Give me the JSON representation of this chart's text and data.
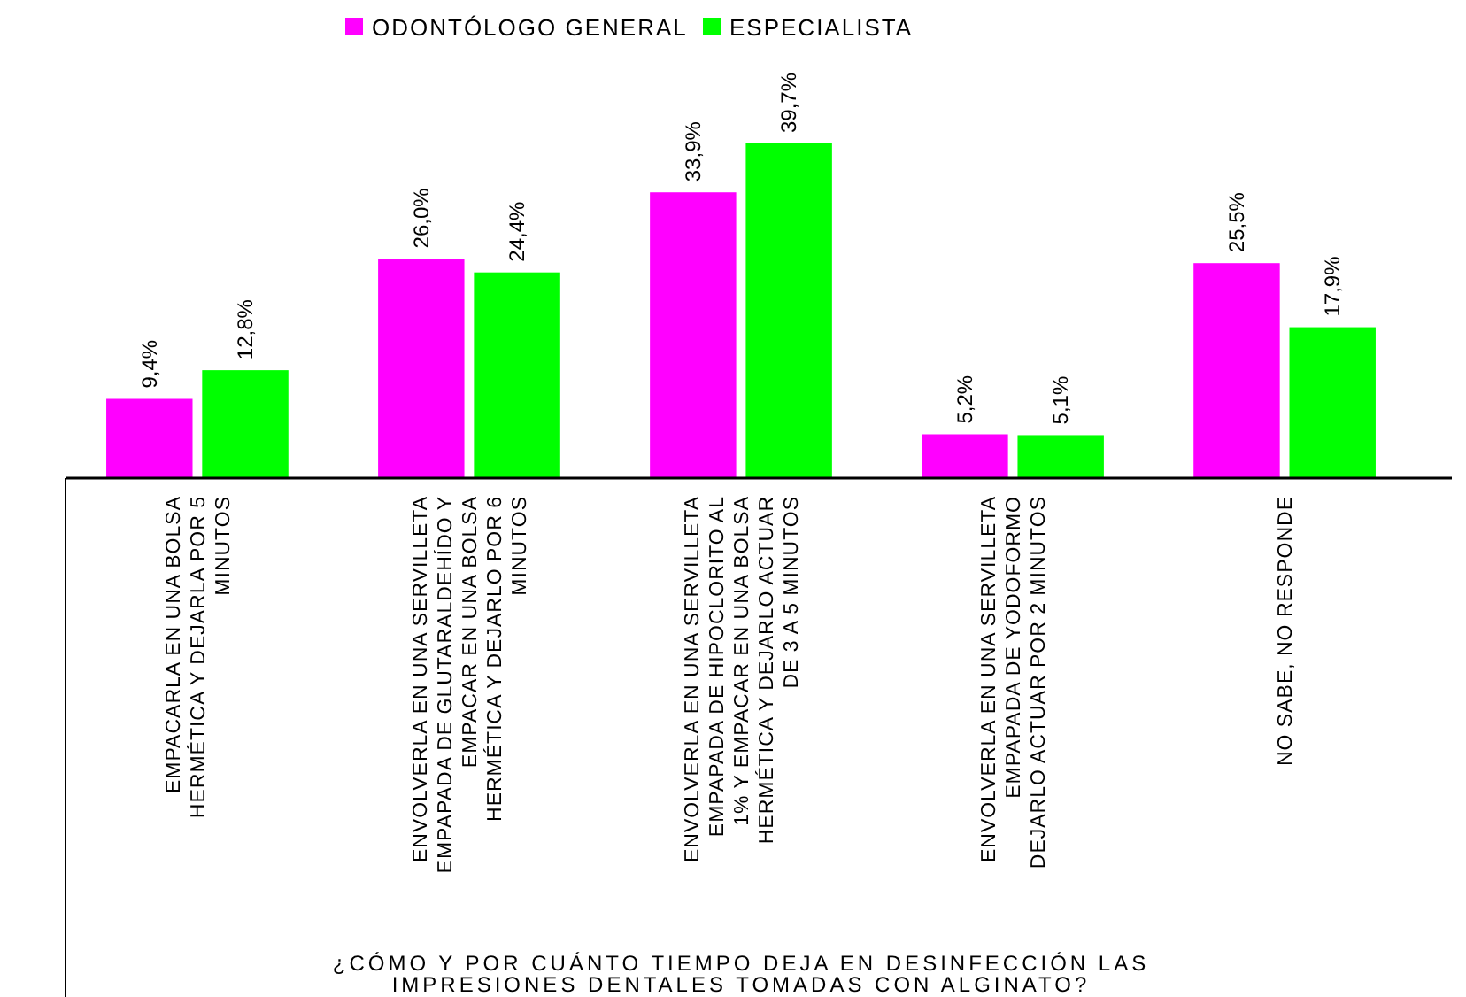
{
  "chart_data": {
    "type": "bar",
    "xlabel": "¿CÓMO Y POR CUÁNTO TIEMPO DEJA EN DESINFECCIÓN LAS IMPRESIONES DENTALES TOMADAS CON ALGINATO?",
    "categories": [
      "EMPACARLA EN UNA BOLSA HERMÉTICA Y DEJARLA POR 5 MINUTOS",
      "ENVOLVERLA EN UNA SERVILLETA EMPAPADA DE GLUTARALDEHÍDO Y EMPACAR EN UNA BOLSA HERMÉTICA Y DEJARLO POR 6 MINUTOS",
      "ENVOLVERLA EN UNA SERVILLETA EMPAPADA DE HIPOCLORITO AL 1% Y EMPACAR EN UNA BOLSA HERMÉTICA Y DEJARLO ACTUAR DE 3 A 5 MINUTOS",
      "ENVOLVERLA EN UNA SERVILLETA EMPAPADA DE YODOFORMO DEJARLO ACTUAR POR 2 MINUTOS",
      "NO SABE, NO RESPONDE"
    ],
    "series": [
      {
        "name": "ODONTÓLOGO GENERAL",
        "color": "#ff00ff",
        "values": [
          9.4,
          26.0,
          33.9,
          5.2,
          25.5
        ],
        "value_labels": [
          "9,4%",
          "26,0%",
          "33,9%",
          "5,2%",
          "25,5%"
        ]
      },
      {
        "name": "ESPECIALISTA",
        "color": "#00ff00",
        "values": [
          12.8,
          24.4,
          39.7,
          5.1,
          17.9
        ],
        "value_labels": [
          "12,8%",
          "24,4%",
          "39,7%",
          "5,1%",
          "17,9%"
        ]
      }
    ],
    "legend": "top"
  }
}
